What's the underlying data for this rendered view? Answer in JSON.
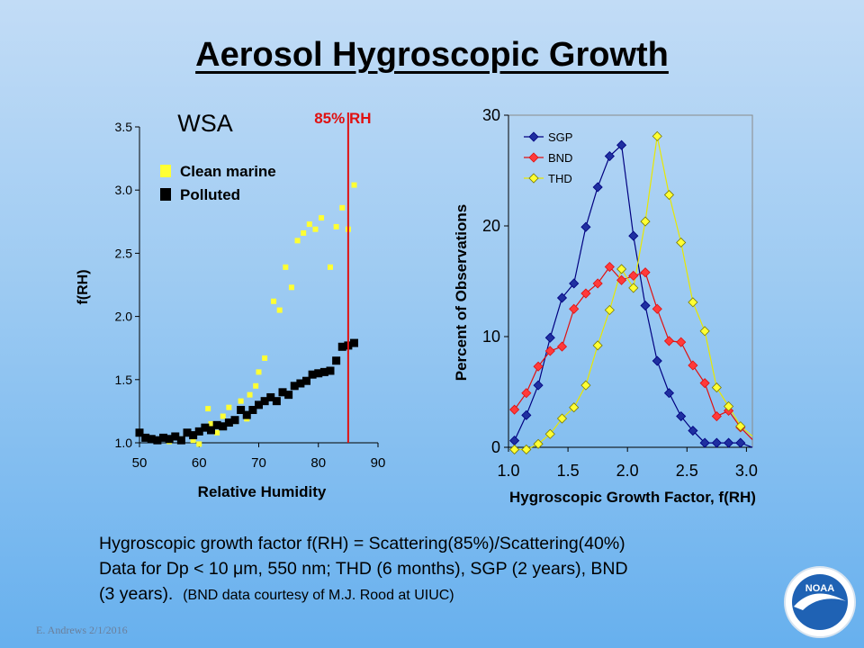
{
  "slide": {
    "title": "Aerosol Hygroscopic Growth",
    "caption_lines": [
      "Hygroscopic growth factor f(RH) = Scattering(85%)/Scattering(40%)",
      "Data for Dp < 10 μm, 550 nm; THD (6 months), SGP (2 years), BND"
    ],
    "caption_line3_main": "(3 years).",
    "caption_line3_small": "(BND data courtesy of M.J. Rood at UIUC)",
    "footer": "E. Andrews   2/1/2016",
    "logo_text": "NOAA"
  },
  "chart_data": [
    {
      "type": "scatter",
      "title": "",
      "site_label": "WSA",
      "xlabel": "Relative Humidity",
      "ylabel": "f(RH)",
      "xlim": [
        50,
        90
      ],
      "ylim": [
        1.0,
        3.5
      ],
      "xticks": [
        "50",
        "60",
        "70",
        "80",
        "90"
      ],
      "yticks": [
        "1.0",
        "1.5",
        "2.0",
        "2.5",
        "3.0",
        "3.5"
      ],
      "grid": false,
      "legend_position": "top-left",
      "reference_line": {
        "x": 85,
        "label": "85% RH",
        "color": "#e01010"
      },
      "series": [
        {
          "name": "Clean marine",
          "color": "#ffff33",
          "points": [
            [
              55,
              1.01
            ],
            [
              57,
              1.03
            ],
            [
              59,
              1.02
            ],
            [
              60,
              0.99
            ],
            [
              61,
              1.12
            ],
            [
              61.5,
              1.27
            ],
            [
              62,
              1.15
            ],
            [
              63,
              1.08
            ],
            [
              64,
              1.21
            ],
            [
              65,
              1.28
            ],
            [
              66,
              1.17
            ],
            [
              67,
              1.33
            ],
            [
              68,
              1.19
            ],
            [
              68.5,
              1.38
            ],
            [
              69.5,
              1.45
            ],
            [
              70,
              1.56
            ],
            [
              71,
              1.67
            ],
            [
              72.5,
              2.12
            ],
            [
              73.5,
              2.05
            ],
            [
              74.5,
              2.39
            ],
            [
              75.5,
              2.23
            ],
            [
              76.5,
              2.6
            ],
            [
              77.5,
              2.66
            ],
            [
              78.5,
              2.73
            ],
            [
              79.5,
              2.69
            ],
            [
              80.5,
              2.78
            ],
            [
              82,
              2.39
            ],
            [
              83,
              2.71
            ],
            [
              84,
              2.86
            ],
            [
              85,
              2.69
            ],
            [
              86,
              3.04
            ]
          ]
        },
        {
          "name": "Polluted",
          "color": "#000000",
          "points": [
            [
              50,
              1.08
            ],
            [
              51,
              1.04
            ],
            [
              52,
              1.03
            ],
            [
              53,
              1.02
            ],
            [
              54,
              1.04
            ],
            [
              55,
              1.03
            ],
            [
              56,
              1.05
            ],
            [
              57,
              1.02
            ],
            [
              58,
              1.08
            ],
            [
              59,
              1.06
            ],
            [
              60,
              1.09
            ],
            [
              61,
              1.12
            ],
            [
              62,
              1.1
            ],
            [
              63,
              1.14
            ],
            [
              64,
              1.13
            ],
            [
              65,
              1.16
            ],
            [
              66,
              1.18
            ],
            [
              67,
              1.26
            ],
            [
              68,
              1.22
            ],
            [
              69,
              1.26
            ],
            [
              70,
              1.3
            ],
            [
              71,
              1.33
            ],
            [
              72,
              1.36
            ],
            [
              73,
              1.33
            ],
            [
              74,
              1.4
            ],
            [
              75,
              1.38
            ],
            [
              76,
              1.45
            ],
            [
              77,
              1.47
            ],
            [
              78,
              1.49
            ],
            [
              79,
              1.54
            ],
            [
              80,
              1.55
            ],
            [
              81,
              1.56
            ],
            [
              82,
              1.57
            ],
            [
              83,
              1.65
            ],
            [
              84,
              1.76
            ],
            [
              85,
              1.77
            ],
            [
              86,
              1.79
            ]
          ]
        }
      ]
    },
    {
      "type": "line",
      "title": "",
      "xlabel": "Hygroscopic  Growth Factor, f(RH)",
      "ylabel": "Percent of Observations",
      "xlim": [
        1.0,
        3.05
      ],
      "ylim": [
        0,
        30
      ],
      "xticks": [
        "1.0",
        "1.5",
        "2.0",
        "2.5",
        "3.0"
      ],
      "yticks": [
        "0",
        "10",
        "20",
        "30"
      ],
      "grid": false,
      "legend_position": "top-left",
      "series": [
        {
          "name": "SGP",
          "color": "#000080",
          "fill": "#1f2fa0",
          "points": [
            [
              1.05,
              0.6
            ],
            [
              1.15,
              2.9
            ],
            [
              1.25,
              5.6
            ],
            [
              1.35,
              9.9
            ],
            [
              1.45,
              13.5
            ],
            [
              1.55,
              14.8
            ],
            [
              1.65,
              19.9
            ],
            [
              1.75,
              23.5
            ],
            [
              1.85,
              26.3
            ],
            [
              1.95,
              27.3
            ],
            [
              2.05,
              19.1
            ],
            [
              2.15,
              12.8
            ],
            [
              2.25,
              7.8
            ],
            [
              2.35,
              4.9
            ],
            [
              2.45,
              2.8
            ],
            [
              2.55,
              1.5
            ],
            [
              2.65,
              0.4
            ],
            [
              2.75,
              0.4
            ],
            [
              2.85,
              0.4
            ],
            [
              2.95,
              0.4
            ],
            [
              3.05,
              0
            ]
          ]
        },
        {
          "name": "BND",
          "color": "#e01010",
          "fill": "#ff3a3a",
          "points": [
            [
              1.05,
              3.4
            ],
            [
              1.15,
              4.9
            ],
            [
              1.25,
              7.3
            ],
            [
              1.35,
              8.7
            ],
            [
              1.45,
              9.1
            ],
            [
              1.55,
              12.5
            ],
            [
              1.65,
              13.9
            ],
            [
              1.75,
              14.8
            ],
            [
              1.85,
              16.3
            ],
            [
              1.95,
              15.1
            ],
            [
              2.05,
              15.5
            ],
            [
              2.15,
              15.8
            ],
            [
              2.25,
              12.5
            ],
            [
              2.35,
              9.6
            ],
            [
              2.45,
              9.5
            ],
            [
              2.55,
              7.4
            ],
            [
              2.65,
              5.8
            ],
            [
              2.75,
              2.8
            ],
            [
              2.85,
              3.3
            ],
            [
              2.95,
              1.8
            ],
            [
              3.05,
              0.7
            ]
          ]
        },
        {
          "name": "THD",
          "color": "#e8e800",
          "fill": "#ffff33",
          "points": [
            [
              1.05,
              -0.2
            ],
            [
              1.15,
              -0.2
            ],
            [
              1.25,
              0.3
            ],
            [
              1.35,
              1.2
            ],
            [
              1.45,
              2.6
            ],
            [
              1.55,
              3.6
            ],
            [
              1.65,
              5.6
            ],
            [
              1.75,
              9.2
            ],
            [
              1.85,
              12.4
            ],
            [
              1.95,
              16.1
            ],
            [
              2.05,
              14.4
            ],
            [
              2.15,
              20.4
            ],
            [
              2.25,
              28.1
            ],
            [
              2.35,
              22.8
            ],
            [
              2.45,
              18.5
            ],
            [
              2.55,
              13.1
            ],
            [
              2.65,
              10.5
            ],
            [
              2.75,
              5.4
            ],
            [
              2.85,
              3.7
            ],
            [
              2.95,
              1.9
            ],
            [
              3.05,
              1.0
            ]
          ]
        }
      ]
    }
  ]
}
